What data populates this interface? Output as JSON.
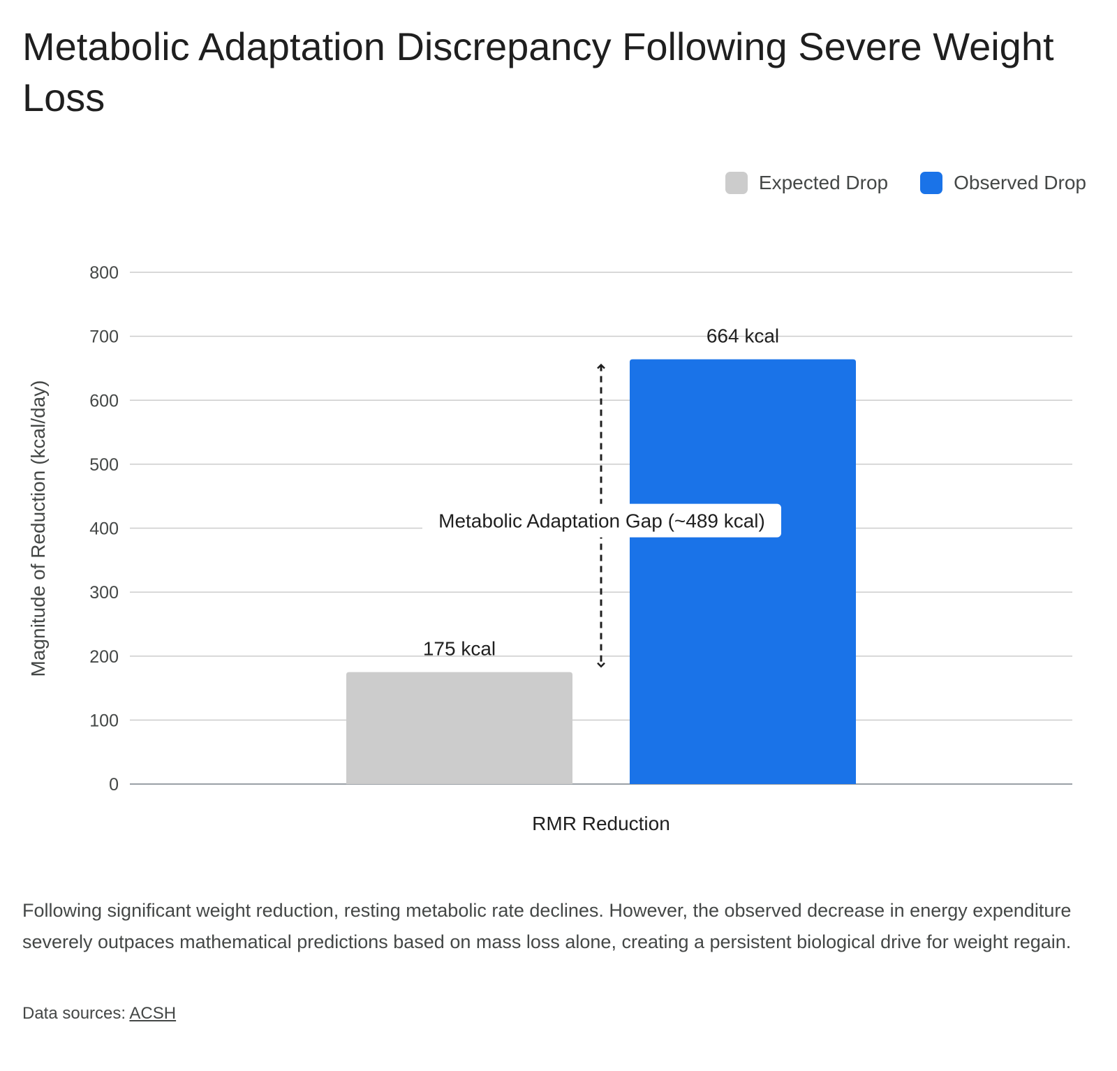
{
  "title": "Metabolic Adaptation Discrepancy Following Severe Weight Loss",
  "description": "Following significant weight reduction, resting metabolic rate declines. However, the observed decrease in energy expenditure severely outpaces mathematical predictions based on mass loss alone, creating a persistent biological drive for weight regain.",
  "sources": {
    "label": "Data sources:",
    "link_text": "ACSH"
  },
  "colors": {
    "expected": "#cccccc",
    "observed": "#1a73e8",
    "grid": "#cccccc",
    "axis_text": "#444746"
  },
  "chart_data": {
    "type": "bar",
    "categories": [
      "RMR Reduction"
    ],
    "series": [
      {
        "name": "Expected Drop",
        "values": [
          175
        ],
        "label": "175 kcal"
      },
      {
        "name": "Observed Drop",
        "values": [
          664
        ],
        "label": "664 kcal"
      }
    ],
    "ylabel": "Magnitude of Reduction (kcal/day)",
    "xlabel": "",
    "ylim": [
      0,
      800
    ],
    "yticks": [
      0,
      100,
      200,
      300,
      400,
      500,
      600,
      700,
      800
    ],
    "grid": true,
    "legend": "top-right",
    "annotation": {
      "text": "Metabolic Adaptation Gap (~489 kcal)",
      "from": 175,
      "to": 664
    }
  }
}
